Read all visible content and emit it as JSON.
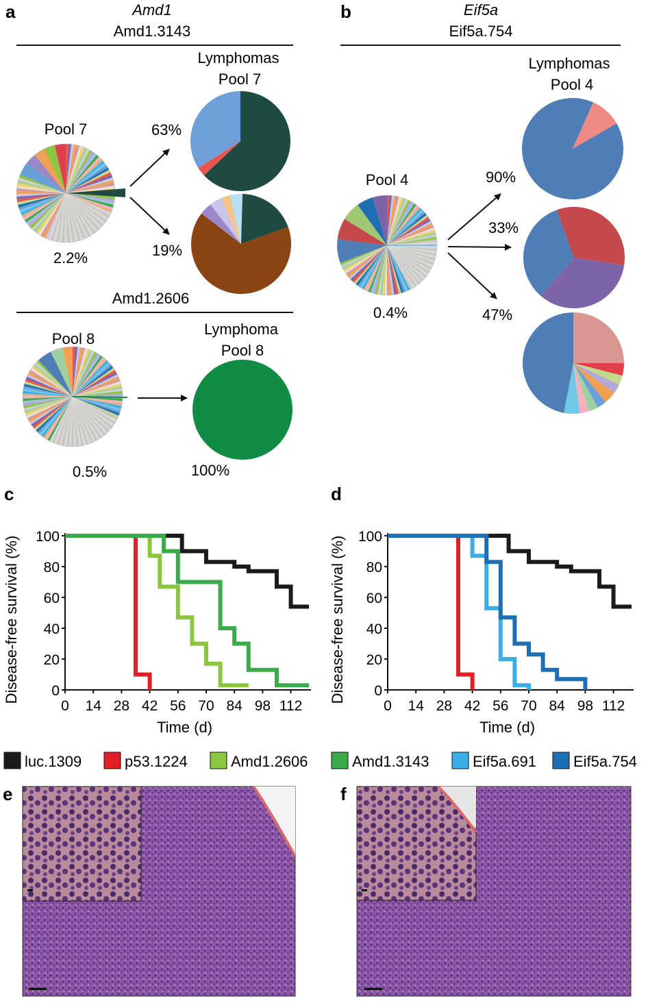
{
  "panels": {
    "a": {
      "letter": "a",
      "gene": "Amd1",
      "shrna_1": "Amd1.3143",
      "pool_1": "Pool 7",
      "pool_1_pct": "2.2%",
      "result_1_title": "Lymphomas",
      "result_1_pool": "Pool 7",
      "arrow_1_pct": "63%",
      "arrow_2_pct": "19%",
      "shrna_2": "Amd1.2606",
      "pool_2": "Pool 8",
      "pool_2_pct": "0.5%",
      "result_2_title": "Lymphoma",
      "result_2_pool": "Pool 8",
      "result_2_pct": "100%"
    },
    "b": {
      "letter": "b",
      "gene": "Eif5a",
      "shrna": "Eif5a.754",
      "pool": "Pool 4",
      "pool_pct": "0.4%",
      "result_title": "Lymphomas",
      "result_pool": "Pool 4",
      "arrow_1_pct": "90%",
      "arrow_2_pct": "33%",
      "arrow_3_pct": "47%"
    },
    "c": {
      "letter": "c"
    },
    "d": {
      "letter": "d"
    },
    "e": {
      "letter": "e"
    },
    "f": {
      "letter": "f"
    }
  },
  "pies": {
    "a_result1": [
      {
        "v": 63,
        "c": "#1f4a42"
      },
      {
        "v": 3,
        "c": "#e8554f"
      },
      {
        "v": 34,
        "c": "#6f9fd8"
      }
    ],
    "a_result2": [
      {
        "v": 66,
        "c": "#8b4514"
      },
      {
        "v": 4,
        "c": "#9c87c8"
      },
      {
        "v": 4,
        "c": "#c9c5e8"
      },
      {
        "v": 3,
        "c": "#f4c28a"
      },
      {
        "v": 4,
        "c": "#b8dff4"
      },
      {
        "v": 19,
        "c": "#1f4a42"
      }
    ],
    "a_result3": [
      {
        "v": 100,
        "c": "#118c45"
      }
    ],
    "b_result1": [
      {
        "v": 90,
        "c": "#4f7db6"
      },
      {
        "v": 10,
        "c": "#ef8a86"
      }
    ],
    "b_result2": [
      {
        "v": 33,
        "c": "#c5484b"
      },
      {
        "v": 34,
        "c": "#7d63a8"
      },
      {
        "v": 33,
        "c": "#4f7db6"
      }
    ],
    "b_result3": [
      {
        "v": 25,
        "c": "#d99693"
      },
      {
        "v": 4,
        "c": "#e0404a"
      },
      {
        "v": 3,
        "c": "#c4d88a"
      },
      {
        "v": 3,
        "c": "#b5a8d8"
      },
      {
        "v": 4,
        "c": "#f0a050"
      },
      {
        "v": 3,
        "c": "#6aa0d8"
      },
      {
        "v": 3,
        "c": "#9fd0a0"
      },
      {
        "v": 3,
        "c": "#f5b0c0"
      },
      {
        "v": 5,
        "c": "#70c8e8"
      },
      {
        "v": 47,
        "c": "#4f7db6"
      }
    ]
  },
  "chart_data": [
    {
      "type": "line",
      "panel": "c",
      "xlabel": "Time (d)",
      "ylabel": "Disease-free survival (%)",
      "xticks": [
        "0",
        "14",
        "28",
        "42",
        "56",
        "70",
        "84",
        "98",
        "112"
      ],
      "yticks": [
        "0",
        "20",
        "40",
        "60",
        "80",
        "100"
      ],
      "xlim": [
        0,
        122
      ],
      "ylim": [
        0,
        100
      ],
      "series": [
        {
          "name": "luc.1309",
          "color": "#1b1b1b",
          "x": [
            0,
            54,
            58,
            70,
            84,
            91,
            105,
            112,
            121
          ],
          "y": [
            100,
            100,
            90,
            83,
            80,
            77,
            67,
            54,
            54
          ]
        },
        {
          "name": "p53.1224",
          "color": "#e41e26",
          "x": [
            0,
            35,
            42
          ],
          "y": [
            100,
            10,
            0
          ]
        },
        {
          "name": "Amd1.2606",
          "color": "#8cc63f",
          "x": [
            0,
            42,
            47,
            56,
            63,
            70,
            77,
            91
          ],
          "y": [
            100,
            87,
            67,
            47,
            30,
            17,
            3,
            3
          ]
        },
        {
          "name": "Amd1.3143",
          "color": "#3aab48",
          "x": [
            0,
            49,
            56,
            77,
            84,
            91,
            105,
            121
          ],
          "y": [
            100,
            90,
            70,
            40,
            30,
            13,
            3,
            3
          ]
        }
      ]
    },
    {
      "type": "line",
      "panel": "d",
      "xlabel": "Time (d)",
      "ylabel": "Disease-free survival (%)",
      "xticks": [
        "0",
        "14",
        "28",
        "42",
        "56",
        "70",
        "84",
        "98",
        "112"
      ],
      "yticks": [
        "0",
        "20",
        "40",
        "60",
        "80",
        "100"
      ],
      "xlim": [
        0,
        122
      ],
      "ylim": [
        0,
        100
      ],
      "series": [
        {
          "name": "luc.1309",
          "color": "#1b1b1b",
          "x": [
            0,
            56,
            60,
            70,
            84,
            91,
            105,
            112,
            121
          ],
          "y": [
            100,
            100,
            90,
            83,
            80,
            77,
            67,
            54,
            54
          ]
        },
        {
          "name": "p53.1224",
          "color": "#e41e26",
          "x": [
            0,
            35,
            42
          ],
          "y": [
            100,
            10,
            0
          ]
        },
        {
          "name": "Eif5a.691",
          "color": "#3aaee6",
          "x": [
            0,
            42,
            49,
            56,
            63,
            70
          ],
          "y": [
            100,
            87,
            53,
            20,
            3,
            0
          ]
        },
        {
          "name": "Eif5a.754",
          "color": "#1f6fb5",
          "x": [
            0,
            49,
            56,
            63,
            70,
            77,
            84,
            98
          ],
          "y": [
            100,
            83,
            47,
            30,
            23,
            13,
            7,
            0
          ]
        }
      ]
    }
  ],
  "legend": [
    {
      "label": "luc.1309",
      "color": "#1b1b1b"
    },
    {
      "label": "p53.1224",
      "color": "#e41e26"
    },
    {
      "label": "Amd1.2606",
      "color": "#8cc63f"
    },
    {
      "label": "Amd1.3143",
      "color": "#3aab48"
    },
    {
      "label": "Eif5a.691",
      "color": "#3aaee6"
    },
    {
      "label": "Eif5a.754",
      "color": "#1f6fb5"
    }
  ]
}
